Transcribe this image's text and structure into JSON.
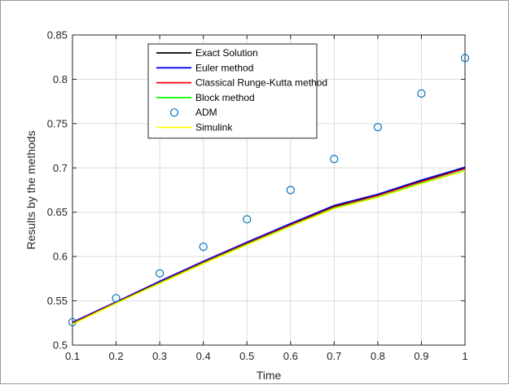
{
  "chart_data": {
    "type": "line",
    "xlabel": "Time",
    "ylabel": "Results by the methods",
    "xlim": [
      0.1,
      1
    ],
    "ylim": [
      0.5,
      0.85
    ],
    "x_ticks": [
      0.1,
      0.2,
      0.3,
      0.4,
      0.5,
      0.6,
      0.7,
      0.8,
      0.9,
      1
    ],
    "x_tick_labels": [
      "0.1",
      "0.2",
      "0.3",
      "0.4",
      "0.5",
      "0.6",
      "0.7",
      "0.8",
      "0.9",
      "1"
    ],
    "y_ticks": [
      0.5,
      0.55,
      0.6,
      0.65,
      0.7,
      0.75,
      0.8,
      0.85
    ],
    "y_tick_labels": [
      "0.5",
      "0.55",
      "0.6",
      "0.65",
      "0.7",
      "0.75",
      "0.8",
      "0.85"
    ],
    "grid": true,
    "legend_position": "top-center",
    "x": [
      0.1,
      0.2,
      0.3,
      0.4,
      0.5,
      0.6,
      0.7,
      0.8,
      0.9,
      1
    ],
    "series": [
      {
        "name": "Exact Solution",
        "style": "line",
        "color": "#000000",
        "values": [
          0.525,
          0.5485,
          0.5715,
          0.594,
          0.6155,
          0.6365,
          0.657,
          0.6695,
          0.6855,
          0.7
        ]
      },
      {
        "name": "Euler method",
        "style": "line",
        "color": "#0000ff",
        "values": [
          0.526,
          0.549,
          0.5722,
          0.5947,
          0.6163,
          0.6373,
          0.6577,
          0.6704,
          0.6864,
          0.701
        ]
      },
      {
        "name": "Classical Runge-Kutta method",
        "style": "line",
        "color": "#ff0000",
        "values": [
          0.525,
          0.5483,
          0.571,
          0.5935,
          0.615,
          0.6358,
          0.656,
          0.6688,
          0.6845,
          0.699
        ]
      },
      {
        "name": "Block method",
        "style": "line",
        "color": "#00ff00",
        "values": [
          0.524,
          0.5475,
          0.5702,
          0.5925,
          0.6138,
          0.6345,
          0.6548,
          0.6672,
          0.683,
          0.697
        ]
      },
      {
        "name": "ADM",
        "style": "marker",
        "color": "#0072bd",
        "values": [
          0.526,
          0.553,
          0.581,
          0.611,
          0.642,
          0.675,
          0.71,
          0.746,
          0.784,
          0.824
        ]
      },
      {
        "name": "Simulink",
        "style": "line",
        "color": "#ffff00",
        "values": [
          0.5235,
          0.547,
          0.5695,
          0.5918,
          0.613,
          0.6338,
          0.654,
          0.6665,
          0.6822,
          0.6965
        ]
      }
    ]
  }
}
